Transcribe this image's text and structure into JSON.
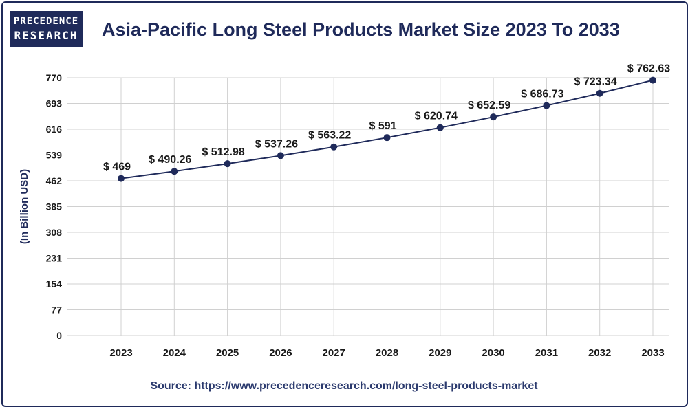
{
  "header": {
    "logo_line1": "PRECEDENCE",
    "logo_line2": "RESEARCH",
    "title": "Asia-Pacific Long Steel Products Market Size 2023 To 2033"
  },
  "footer": {
    "source": "Source: https://www.precedenceresearch.com/long-steel-products-market"
  },
  "colors": {
    "line": "#1f2a5a",
    "grid": "#d0d0d0",
    "text": "#1a1a1a"
  },
  "chart_data": {
    "type": "line",
    "title": "Asia-Pacific Long Steel Products Market Size 2023 To 2033",
    "xlabel": "",
    "ylabel": "(In Billion USD)",
    "ylim": [
      0,
      770
    ],
    "yticks": [
      "0",
      "77",
      "154",
      "231",
      "308",
      "385",
      "462",
      "539",
      "616",
      "693",
      "770"
    ],
    "grid": true,
    "categories": [
      "2023",
      "2024",
      "2025",
      "2026",
      "2027",
      "2028",
      "2029",
      "2030",
      "2031",
      "2032",
      "2033"
    ],
    "values": [
      469,
      490.26,
      512.98,
      537.26,
      563.22,
      591,
      620.74,
      652.59,
      686.73,
      723.34,
      762.63
    ],
    "data_labels": [
      "$ 469",
      "$ 490.26",
      "$ 512.98",
      "$ 537.26",
      "$ 563.22",
      "$ 591",
      "$ 620.74",
      "$ 652.59",
      "$ 686.73",
      "$ 723.34",
      "$ 762.63"
    ]
  }
}
